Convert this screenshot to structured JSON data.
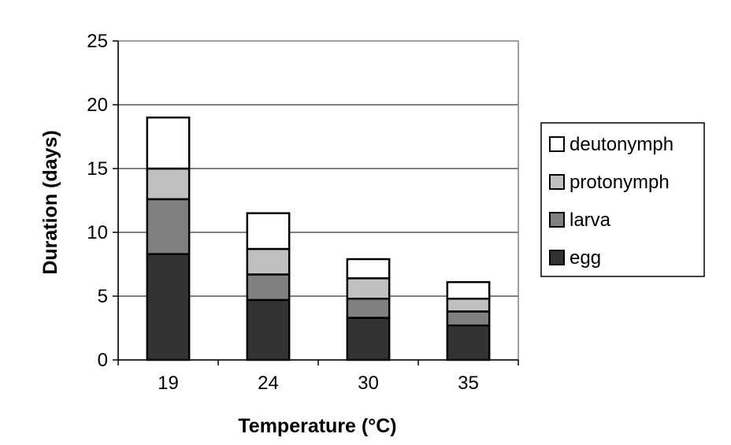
{
  "chart_data": {
    "type": "bar",
    "stacked": true,
    "categories": [
      "19",
      "24",
      "30",
      "35"
    ],
    "series": [
      {
        "name": "egg",
        "values": [
          8.3,
          4.7,
          3.3,
          2.7
        ],
        "color": "#333333"
      },
      {
        "name": "larva",
        "values": [
          4.3,
          2.0,
          1.5,
          1.1
        ],
        "color": "#808080"
      },
      {
        "name": "protonymph",
        "values": [
          2.4,
          2.0,
          1.6,
          1.0
        ],
        "color": "#c0c0c0"
      },
      {
        "name": "deutonymph",
        "values": [
          4.0,
          2.8,
          1.5,
          1.3
        ],
        "color": "#ffffff"
      }
    ],
    "title": "",
    "xlabel": "Temperature (°C)",
    "ylabel": "Duration (days)",
    "ylim": [
      0,
      25
    ],
    "yticks": [
      0,
      5,
      10,
      15,
      20,
      25
    ],
    "grid": true,
    "legend_position": "right"
  }
}
